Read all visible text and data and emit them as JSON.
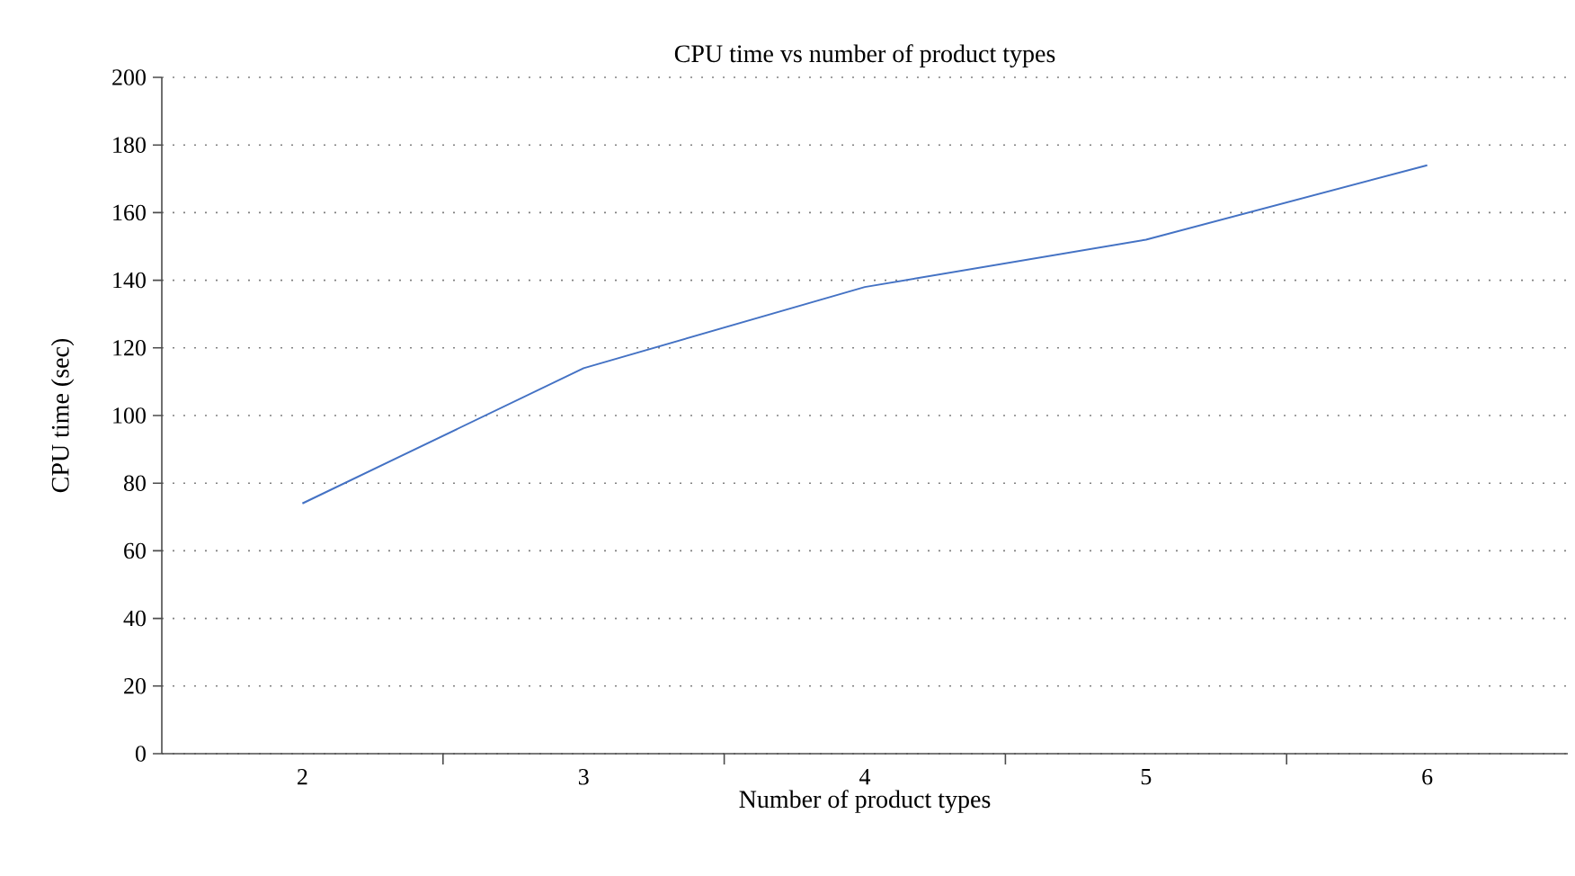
{
  "chart_data": {
    "type": "line",
    "title": "CPU time vs number of product types",
    "xlabel": "Number of product types",
    "ylabel": "CPU time (sec)",
    "categories": [
      "2",
      "3",
      "4",
      "5",
      "6"
    ],
    "series": [
      {
        "color": "#4472c4",
        "values": [
          74,
          114,
          138,
          152,
          174
        ]
      }
    ],
    "ylim": [
      0,
      200
    ],
    "yticks": [
      0,
      20,
      40,
      60,
      80,
      100,
      120,
      140,
      160,
      180,
      200
    ],
    "grid": "y",
    "marker": "none",
    "line_style": "solid"
  }
}
